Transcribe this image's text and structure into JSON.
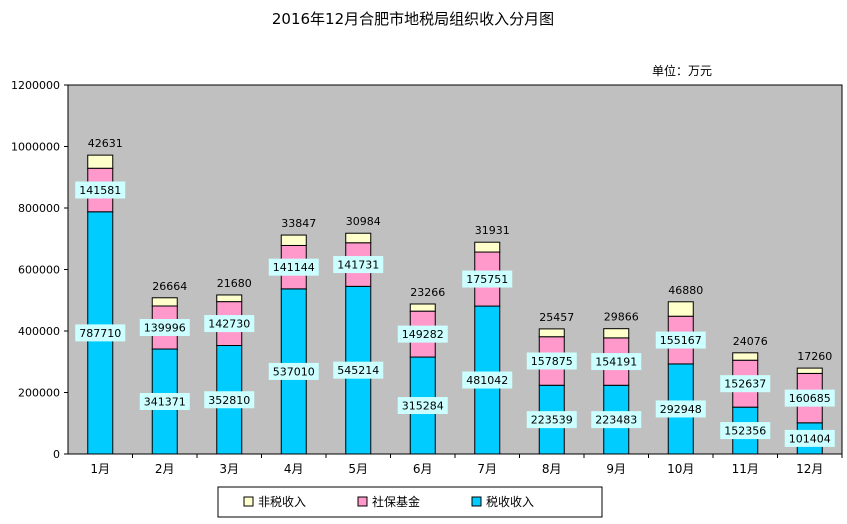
{
  "chart_data": {
    "type": "bar",
    "stacked": true,
    "title": "2016年12月合肥市地税局组织收入分月图",
    "unit_label": "单位：万元",
    "categories": [
      "1月",
      "2月",
      "3月",
      "4月",
      "5月",
      "6月",
      "7月",
      "8月",
      "9月",
      "10月",
      "11月",
      "12月"
    ],
    "series": [
      {
        "name": "税收收入",
        "color": "#00ccff",
        "values": [
          787710,
          341371,
          352810,
          537010,
          545214,
          315284,
          481042,
          223539,
          223483,
          292948,
          152356,
          101404
        ]
      },
      {
        "name": "社保基金",
        "color": "#ff99cc",
        "values": [
          141581,
          139996,
          142730,
          141144,
          141731,
          149282,
          175751,
          157875,
          154191,
          155167,
          152637,
          160685
        ]
      },
      {
        "name": "非税收入",
        "color": "#ffffcc",
        "values": [
          42631,
          26664,
          21680,
          33847,
          30984,
          23266,
          31931,
          25457,
          29866,
          46880,
          24076,
          17260
        ]
      }
    ],
    "legend_order": [
      "非税收入",
      "社保基金",
      "税收收入"
    ],
    "ylim": [
      0,
      1200000
    ],
    "yticks": [
      "0",
      "200000",
      "400000",
      "600000",
      "800000",
      "1000000",
      "1200000"
    ],
    "grid": false,
    "plot_background": "#c0c0c0",
    "legend_position": "bottom"
  }
}
